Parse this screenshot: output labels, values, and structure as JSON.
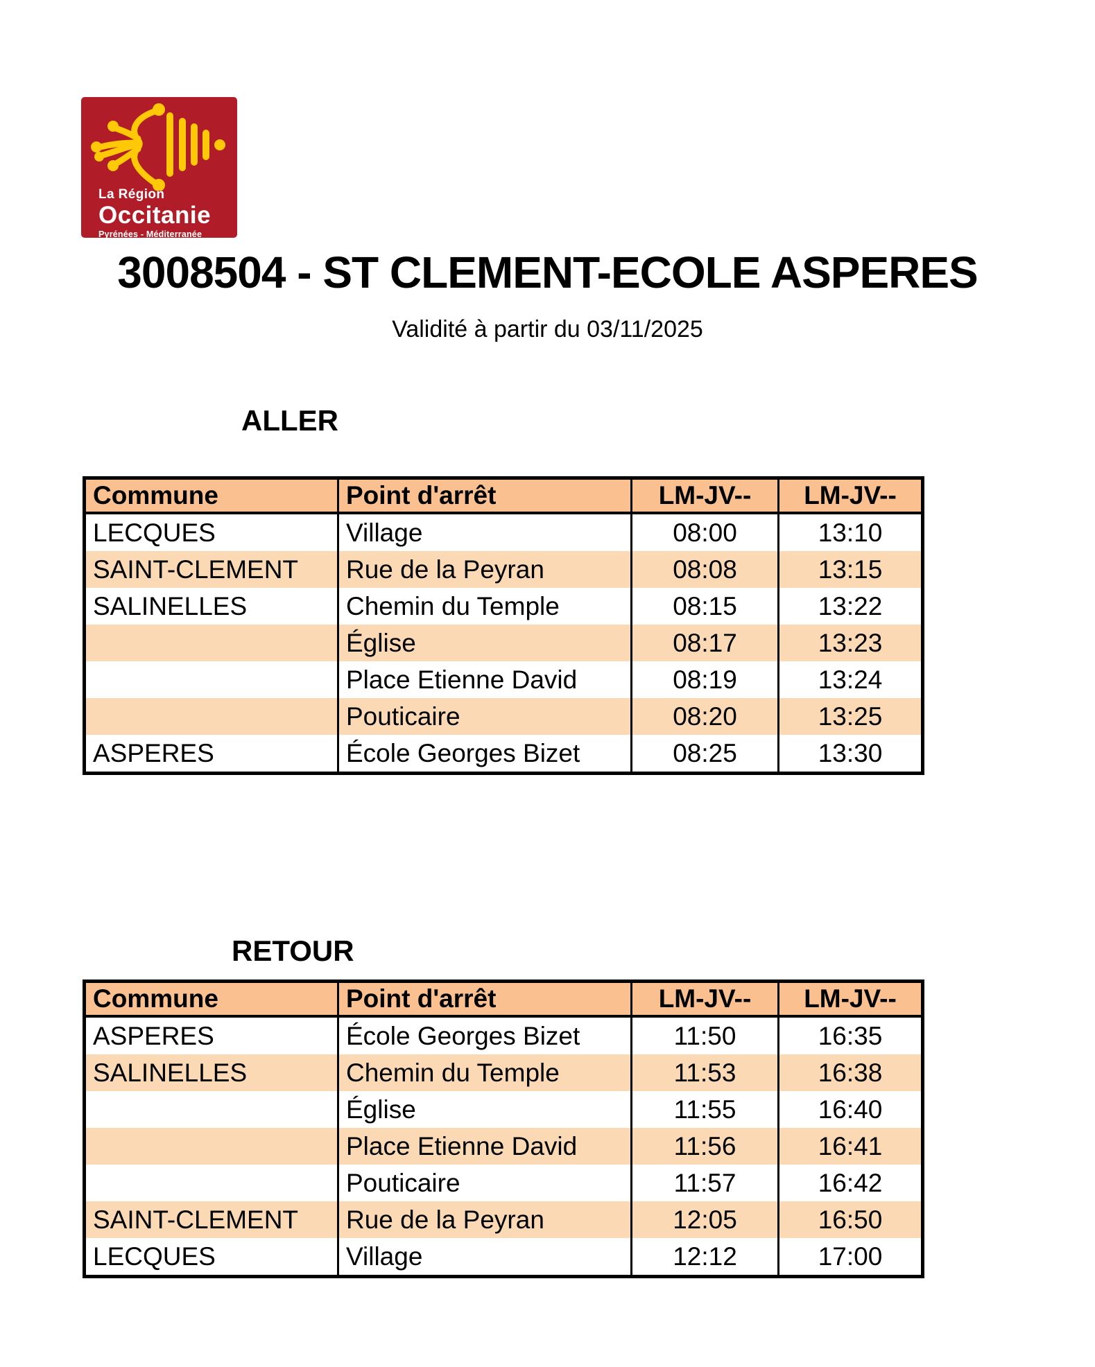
{
  "logo": {
    "region_line": "La Région",
    "name": "Occitanie",
    "subtitle": "Pyrénées - Méditerranée",
    "bg_color": "#B01D28",
    "emblem_color": "#FFC907",
    "emblem_icon": "occitan-cross-and-bars"
  },
  "header": {
    "title": "3008504 - ST CLEMENT-ECOLE ASPERES",
    "validity": "Validité à partir du 03/11/2025"
  },
  "colors": {
    "table_header_bg": "#FAC08F",
    "row_stripe_bg": "#FCD9B5",
    "border": "#000000"
  },
  "tables": [
    {
      "id": "aller",
      "heading": "ALLER",
      "columns": [
        "Commune",
        "Point d'arrêt",
        "LM-JV--",
        "LM-JV--"
      ],
      "rows": [
        [
          "LECQUES",
          "Village",
          "08:00",
          "13:10"
        ],
        [
          "SAINT-CLEMENT",
          "Rue de la Peyran",
          "08:08",
          "13:15"
        ],
        [
          "SALINELLES",
          "Chemin du Temple",
          "08:15",
          "13:22"
        ],
        [
          "",
          "Église",
          "08:17",
          "13:23"
        ],
        [
          "",
          "Place Etienne David",
          "08:19",
          "13:24"
        ],
        [
          "",
          "Pouticaire",
          "08:20",
          "13:25"
        ],
        [
          "ASPERES",
          "École Georges Bizet",
          "08:25",
          "13:30"
        ]
      ]
    },
    {
      "id": "retour",
      "heading": "RETOUR",
      "columns": [
        "Commune",
        "Point d'arrêt",
        "LM-JV--",
        "LM-JV--"
      ],
      "rows": [
        [
          "ASPERES",
          "École Georges Bizet",
          "11:50",
          "16:35"
        ],
        [
          "SALINELLES",
          "Chemin du Temple",
          "11:53",
          "16:38"
        ],
        [
          "",
          "Église",
          "11:55",
          "16:40"
        ],
        [
          "",
          "Place Etienne David",
          "11:56",
          "16:41"
        ],
        [
          "",
          "Pouticaire",
          "11:57",
          "16:42"
        ],
        [
          "SAINT-CLEMENT",
          "Rue de la Peyran",
          "12:05",
          "16:50"
        ],
        [
          "LECQUES",
          "Village",
          "12:12",
          "17:00"
        ]
      ]
    }
  ]
}
